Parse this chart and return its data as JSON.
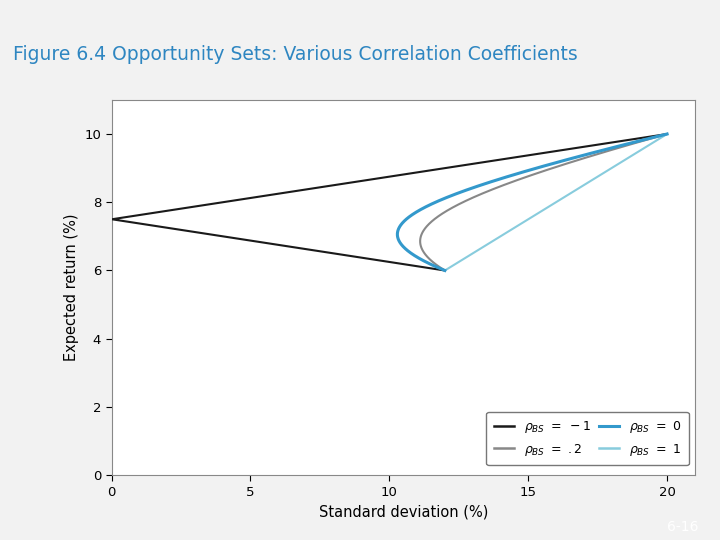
{
  "title": "Figure 6.4 Opportunity Sets: Various Correlation Coefficients",
  "title_color": "#2980b9",
  "header_bg": "#1a3a5c",
  "header_text_color": "#2e86c1",
  "xlabel": "Standard deviation (%)",
  "ylabel": "Expected return (%)",
  "xlim": [
    0,
    21
  ],
  "ylim": [
    0,
    11
  ],
  "xticks": [
    0,
    5,
    10,
    15,
    20
  ],
  "yticks": [
    0,
    2,
    4,
    6,
    8,
    10
  ],
  "E_rB": 6.0,
  "sigma_B": 12.0,
  "E_rS": 10.0,
  "sigma_S": 20.0,
  "rho_neg1_color": "#1a1a1a",
  "rho_0_color": "#3399cc",
  "rho_02_color": "#888888",
  "rho_1_color": "#88ccdd",
  "footer_text": "6-16",
  "footer_text_color": "#ffffff",
  "footer_bg": "#1a3a5c",
  "plot_bg": "#ffffff",
  "slide_bg": "#f2f2f2",
  "border_color": "#c0c0c0"
}
